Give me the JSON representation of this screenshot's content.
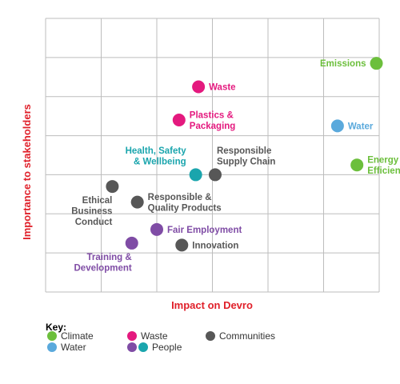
{
  "colors": {
    "climate": "#6cbf3c",
    "water": "#5aa9dc",
    "waste": "#e4197e",
    "communities": "#575757",
    "people_purple": "#7f4ca5",
    "people_teal": "#1aa5ad",
    "axis_title": "#e0202a",
    "grid": "#bdbdbd"
  },
  "chart_data": {
    "type": "scatter",
    "xlabel": "Impact on Devro",
    "ylabel": "Importance to stakeholders",
    "xlim": [
      0,
      6
    ],
    "ylim": [
      0,
      7
    ],
    "grid": true,
    "grid_cells": [
      6,
      7
    ],
    "points": [
      {
        "label": [
          "Emissions"
        ],
        "x": 5.95,
        "y": 5.85,
        "category": "climate",
        "label_pos": "left"
      },
      {
        "label": [
          "Waste"
        ],
        "x": 2.75,
        "y": 5.25,
        "category": "waste",
        "label_pos": "right"
      },
      {
        "label": [
          "Plastics &",
          "Packaging"
        ],
        "x": 2.4,
        "y": 4.4,
        "category": "waste",
        "label_pos": "right"
      },
      {
        "label": [
          "Water"
        ],
        "x": 5.25,
        "y": 4.25,
        "category": "water",
        "label_pos": "right"
      },
      {
        "label": [
          "Energy",
          "Efficiency"
        ],
        "x": 5.6,
        "y": 3.25,
        "category": "climate",
        "label_pos": "right"
      },
      {
        "label": [
          "Health, Safety",
          "& Wellbeing"
        ],
        "x": 2.7,
        "y": 3.0,
        "category": "people_teal",
        "label_pos": "above-left"
      },
      {
        "label": [
          "Responsible",
          "Supply Chain"
        ],
        "x": 3.05,
        "y": 3.0,
        "category": "communities",
        "label_pos": "above-right"
      },
      {
        "label": [
          "Ethical",
          "Business",
          "Conduct"
        ],
        "x": 1.2,
        "y": 2.7,
        "category": "communities",
        "label_pos": "below-left"
      },
      {
        "label": [
          "Responsible &",
          "Quality Products"
        ],
        "x": 1.65,
        "y": 2.3,
        "category": "communities",
        "label_pos": "right"
      },
      {
        "label": [
          "Fair Employment"
        ],
        "x": 2.0,
        "y": 1.6,
        "category": "people_purple",
        "label_pos": "right"
      },
      {
        "label": [
          "Innovation"
        ],
        "x": 2.45,
        "y": 1.2,
        "category": "communities",
        "label_pos": "right"
      },
      {
        "label": [
          "Training &",
          "Development"
        ],
        "x": 1.55,
        "y": 1.25,
        "category": "people_purple",
        "label_pos": "below-left"
      }
    ]
  },
  "key": {
    "title": "Key:",
    "entries": [
      {
        "label": "Climate",
        "swatches": [
          "climate"
        ]
      },
      {
        "label": "Waste",
        "swatches": [
          "waste"
        ]
      },
      {
        "label": "Communities",
        "swatches": [
          "communities"
        ]
      },
      {
        "label": "Water",
        "swatches": [
          "water"
        ]
      },
      {
        "label": "People",
        "swatches": [
          "people_purple",
          "people_teal"
        ]
      }
    ]
  }
}
